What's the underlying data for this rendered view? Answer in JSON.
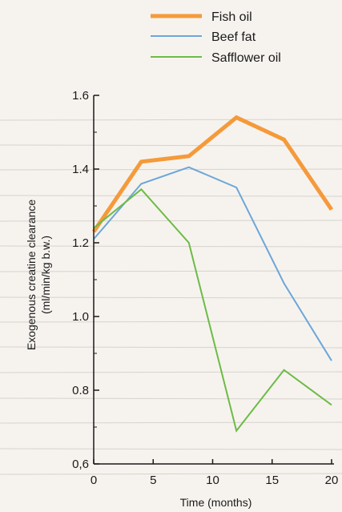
{
  "chart_data": {
    "type": "line",
    "title": "",
    "xlabel": "Time (months)",
    "ylabel": "Exogenous creatine clearance",
    "ylabel_unit": "(ml/min/kg b.w.)",
    "xlim": [
      0,
      20
    ],
    "ylim": [
      0.6,
      1.6
    ],
    "x_ticks": [
      0,
      5,
      10,
      15,
      20
    ],
    "x_tick_labels": [
      "0",
      "5",
      "10",
      "15",
      "20"
    ],
    "y_ticks": [
      0.6,
      0.8,
      1.0,
      1.2,
      1.4,
      1.6
    ],
    "y_tick_labels": [
      "0,6",
      "0.8",
      "1.0",
      "1.2",
      "1.4",
      "1.6"
    ],
    "grid": "horizontal ruled lines",
    "legend_position": "top-right",
    "series": [
      {
        "name": "Fish oil",
        "color": "#f59a3a",
        "x": [
          0,
          4,
          8,
          12,
          16,
          20
        ],
        "values": [
          1.23,
          1.42,
          1.435,
          1.54,
          1.48,
          1.29
        ]
      },
      {
        "name": "Beef fat",
        "color": "#6ea6d8",
        "x": [
          0,
          4,
          8,
          12,
          16,
          20
        ],
        "values": [
          1.21,
          1.36,
          1.405,
          1.35,
          1.09,
          0.88
        ]
      },
      {
        "name": "Safflower oil",
        "color": "#6dbb45",
        "x": [
          0,
          4,
          8,
          12,
          16,
          20
        ],
        "values": [
          1.24,
          1.345,
          1.2,
          0.69,
          0.855,
          0.76
        ]
      }
    ]
  }
}
